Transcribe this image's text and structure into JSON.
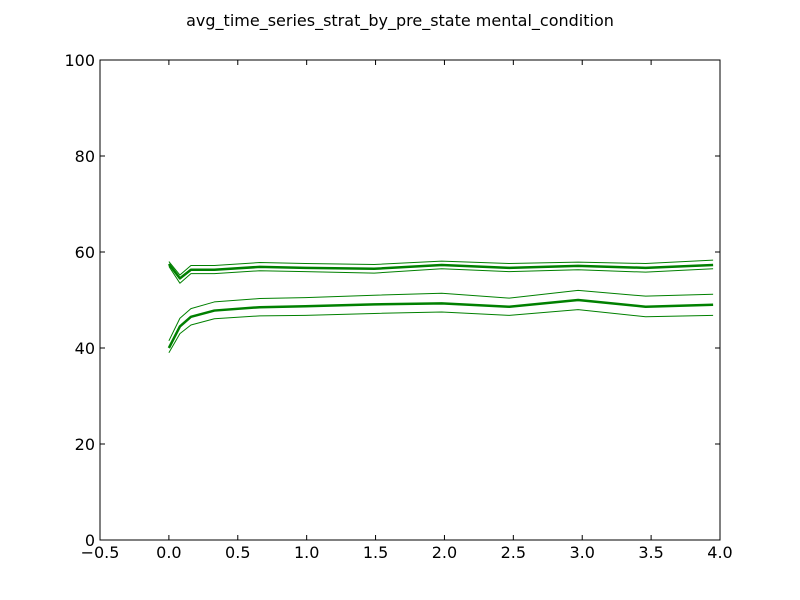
{
  "chart_data": {
    "type": "line",
    "title": "avg_time_series_strat_by_pre_state mental_condition",
    "xlabel": "",
    "ylabel": "",
    "xlim": [
      -0.5,
      4.0
    ],
    "ylim": [
      0,
      100
    ],
    "xticks": [
      -0.5,
      0.0,
      0.5,
      1.0,
      1.5,
      2.0,
      2.5,
      3.0,
      3.5,
      4.0
    ],
    "xtick_labels": [
      "−0.5",
      "0.0",
      "0.5",
      "1.0",
      "1.5",
      "2.0",
      "2.5",
      "3.0",
      "3.5",
      "4.0"
    ],
    "yticks": [
      0,
      20,
      40,
      60,
      80,
      100
    ],
    "ytick_labels": [
      "0",
      "20",
      "40",
      "60",
      "80",
      "100"
    ],
    "grid": false,
    "legend": "none",
    "color": "#008000",
    "series": [
      {
        "role": "mean",
        "x": [
          0.0,
          0.08,
          0.16,
          0.33,
          0.66,
          0.99,
          1.49,
          1.98,
          2.47,
          2.97,
          3.46,
          3.95
        ],
        "y": [
          57.5,
          54.5,
          56.3,
          56.3,
          56.9,
          56.7,
          56.5,
          57.3,
          56.7,
          57.1,
          56.7,
          57.3
        ]
      },
      {
        "role": "upper",
        "x": [
          0.0,
          0.08,
          0.16,
          0.33,
          0.66,
          0.99,
          1.49,
          1.98,
          2.47,
          2.97,
          3.46,
          3.95
        ],
        "y": [
          58.0,
          55.2,
          57.2,
          57.2,
          57.8,
          57.6,
          57.4,
          58.1,
          57.6,
          57.9,
          57.6,
          58.3
        ]
      },
      {
        "role": "lower",
        "x": [
          0.0,
          0.08,
          0.16,
          0.33,
          0.66,
          0.99,
          1.49,
          1.98,
          2.47,
          2.97,
          3.46,
          3.95
        ],
        "y": [
          57.0,
          53.5,
          55.5,
          55.5,
          56.1,
          55.9,
          55.6,
          56.5,
          55.9,
          56.3,
          55.8,
          56.5
        ]
      },
      {
        "role": "mean",
        "x": [
          0.0,
          0.08,
          0.16,
          0.33,
          0.66,
          0.99,
          1.49,
          1.98,
          2.47,
          2.97,
          3.46,
          3.95
        ],
        "y": [
          40.0,
          44.5,
          46.5,
          47.8,
          48.5,
          48.7,
          49.1,
          49.3,
          48.6,
          50.0,
          48.6,
          49.0
        ]
      },
      {
        "role": "upper",
        "x": [
          0.0,
          0.08,
          0.16,
          0.33,
          0.66,
          0.99,
          1.49,
          1.98,
          2.47,
          2.97,
          3.46,
          3.95
        ],
        "y": [
          41.5,
          46.2,
          48.2,
          49.6,
          50.3,
          50.5,
          51.0,
          51.4,
          50.4,
          52.0,
          50.8,
          51.2
        ]
      },
      {
        "role": "lower",
        "x": [
          0.0,
          0.08,
          0.16,
          0.33,
          0.66,
          0.99,
          1.49,
          1.98,
          2.47,
          2.97,
          3.46,
          3.95
        ],
        "y": [
          39.0,
          43.0,
          44.8,
          46.1,
          46.7,
          46.8,
          47.2,
          47.5,
          46.8,
          48.0,
          46.5,
          46.8
        ]
      }
    ]
  }
}
